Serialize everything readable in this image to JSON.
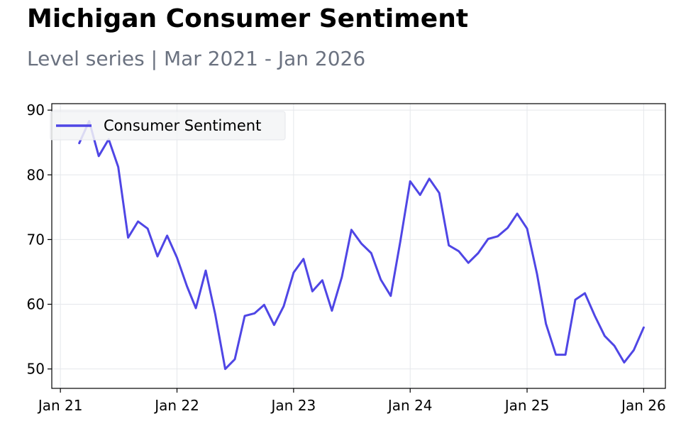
{
  "header": {
    "title": "Michigan Consumer Sentiment",
    "subtitle": "Level series | Mar 2021 - Jan 2026"
  },
  "colors": {
    "series": "#4f46e5",
    "grid": "#e5e7eb",
    "legend_bg": "#f3f4f6",
    "subtitle": "#6b7280"
  },
  "chart_data": {
    "type": "line",
    "title": "Michigan Consumer Sentiment",
    "subtitle": "Level series | Mar 2021 - Jan 2026",
    "xlabel": "",
    "ylabel": "",
    "ylim": [
      47,
      91
    ],
    "xlim": [
      "2020-12-05",
      "2026-03-10"
    ],
    "yticks": [
      50,
      60,
      70,
      80,
      90
    ],
    "xticks": [
      {
        "date": "2021-01-01",
        "label": "Jan 21"
      },
      {
        "date": "2022-01-01",
        "label": "Jan 22"
      },
      {
        "date": "2023-01-01",
        "label": "Jan 23"
      },
      {
        "date": "2024-01-01",
        "label": "Jan 24"
      },
      {
        "date": "2025-01-01",
        "label": "Jan 25"
      },
      {
        "date": "2026-01-01",
        "label": "Jan 26"
      }
    ],
    "grid": true,
    "legend": "top-left",
    "series": [
      {
        "name": "Consumer Sentiment",
        "x": [
          "2021-03-01",
          "2021-04-01",
          "2021-05-01",
          "2021-06-01",
          "2021-07-01",
          "2021-08-01",
          "2021-09-01",
          "2021-10-01",
          "2021-11-01",
          "2021-12-01",
          "2022-01-01",
          "2022-02-01",
          "2022-03-01",
          "2022-04-01",
          "2022-05-01",
          "2022-06-01",
          "2022-07-01",
          "2022-08-01",
          "2022-09-01",
          "2022-10-01",
          "2022-11-01",
          "2022-12-01",
          "2023-01-01",
          "2023-02-01",
          "2023-03-01",
          "2023-04-01",
          "2023-05-01",
          "2023-06-01",
          "2023-07-01",
          "2023-08-01",
          "2023-09-01",
          "2023-10-01",
          "2023-11-01",
          "2023-12-01",
          "2024-01-01",
          "2024-02-01",
          "2024-03-01",
          "2024-04-01",
          "2024-05-01",
          "2024-06-01",
          "2024-07-01",
          "2024-08-01",
          "2024-09-01",
          "2024-10-01",
          "2024-11-01",
          "2024-12-01",
          "2025-01-01",
          "2025-02-01",
          "2025-03-01",
          "2025-04-01",
          "2025-05-01",
          "2025-06-01",
          "2025-07-01",
          "2025-08-01",
          "2025-09-01",
          "2025-10-01",
          "2025-11-01",
          "2025-12-01",
          "2026-01-01"
        ],
        "y": [
          84.9,
          88.3,
          82.9,
          85.5,
          81.2,
          70.3,
          72.8,
          71.7,
          67.4,
          70.6,
          67.2,
          62.8,
          59.4,
          65.2,
          58.4,
          50.0,
          51.5,
          58.2,
          58.6,
          59.9,
          56.8,
          59.7,
          64.9,
          67.0,
          62.0,
          63.7,
          59.0,
          64.2,
          71.5,
          69.4,
          67.9,
          63.8,
          61.3,
          69.7,
          79.0,
          76.9,
          79.4,
          77.2,
          69.1,
          68.2,
          66.4,
          67.9,
          70.1,
          70.5,
          71.8,
          74.0,
          71.7,
          64.7,
          57.0,
          52.2,
          52.2,
          60.7,
          61.7,
          58.2,
          55.1,
          53.6,
          51.0,
          52.9,
          56.4
        ]
      }
    ]
  }
}
